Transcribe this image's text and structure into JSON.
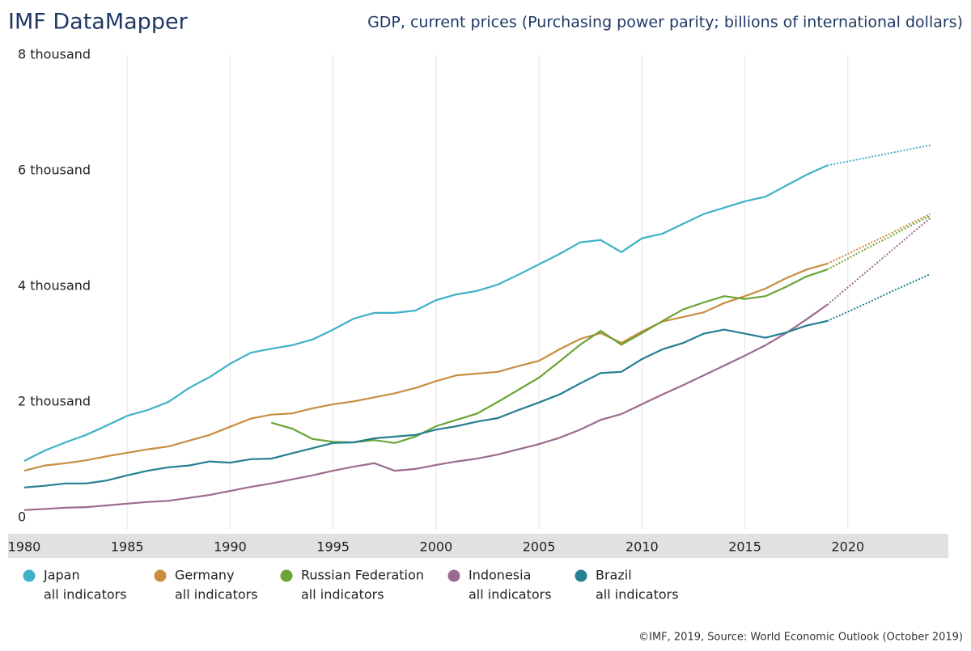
{
  "brand": "IMF DataMapper",
  "footer": "©IMF, 2019, Source: World Economic Outlook (October 2019)",
  "chart_data": {
    "type": "line",
    "title": "GDP, current prices (Purchasing power parity; billions of international dollars)",
    "x": [
      1980,
      1981,
      1982,
      1983,
      1984,
      1985,
      1986,
      1987,
      1988,
      1989,
      1990,
      1991,
      1992,
      1993,
      1994,
      1995,
      1996,
      1997,
      1998,
      1999,
      2000,
      2001,
      2002,
      2003,
      2004,
      2005,
      2006,
      2007,
      2008,
      2009,
      2010,
      2011,
      2012,
      2013,
      2014,
      2015,
      2016,
      2017,
      2018,
      2019,
      2020,
      2021,
      2022,
      2023,
      2024
    ],
    "forecast_from": 2019,
    "xlim": [
      1980,
      2025
    ],
    "xticks": [
      1980,
      1985,
      1990,
      1995,
      2000,
      2005,
      2010,
      2015,
      2020
    ],
    "ylim": [
      0,
      8000
    ],
    "yticks": [
      0,
      {
        "value": 2000,
        "label": "2 thousand"
      },
      {
        "value": 4000,
        "label": "4 thousand"
      },
      {
        "value": 6000,
        "label": "6 thousand"
      },
      {
        "value": 8000,
        "label": "8 thousand"
      }
    ],
    "grid": "x",
    "series": [
      {
        "name": "Japan",
        "subtitle": "all indicators",
        "color": "#3eb1c8",
        "values": [
          980,
          1160,
          1300,
          1430,
          1590,
          1760,
          1860,
          2000,
          2240,
          2430,
          2660,
          2850,
          2920,
          2980,
          3080,
          3250,
          3440,
          3540,
          3540,
          3580,
          3760,
          3860,
          3920,
          4030,
          4200,
          4380,
          4560,
          4760,
          4800,
          4590,
          4830,
          4910,
          5080,
          5250,
          5360,
          5470,
          5550,
          5740,
          5930,
          6090,
          6160,
          6230,
          6300,
          6370,
          6440
        ]
      },
      {
        "name": "Germany",
        "subtitle": "all indicators",
        "color": "#c98d3f",
        "values": [
          810,
          900,
          940,
          990,
          1060,
          1120,
          1180,
          1230,
          1330,
          1430,
          1570,
          1710,
          1780,
          1800,
          1890,
          1960,
          2010,
          2080,
          2150,
          2240,
          2360,
          2460,
          2490,
          2520,
          2620,
          2710,
          2910,
          3090,
          3190,
          3020,
          3220,
          3390,
          3470,
          3550,
          3710,
          3830,
          3960,
          4140,
          4290,
          4390,
          4560,
          4730,
          4900,
          5080,
          5250
        ]
      },
      {
        "name": "Russian Federation",
        "subtitle": "all indicators",
        "color": "#6aa434",
        "values": [
          null,
          null,
          null,
          null,
          null,
          null,
          null,
          null,
          null,
          null,
          null,
          null,
          1640,
          1540,
          1360,
          1310,
          1300,
          1340,
          1290,
          1400,
          1580,
          1690,
          1800,
          2000,
          2210,
          2420,
          2700,
          2990,
          3230,
          2990,
          3190,
          3400,
          3600,
          3720,
          3830,
          3780,
          3830,
          3990,
          4170,
          4290,
          4480,
          4670,
          4850,
          5040,
          5220
        ]
      },
      {
        "name": "Indonesia",
        "subtitle": "all indicators",
        "color": "#9b6b8e",
        "values": [
          130,
          150,
          170,
          180,
          210,
          240,
          270,
          290,
          340,
          390,
          460,
          530,
          590,
          660,
          730,
          810,
          880,
          940,
          810,
          840,
          910,
          970,
          1020,
          1090,
          1180,
          1270,
          1380,
          1520,
          1690,
          1790,
          1960,
          2130,
          2290,
          2460,
          2630,
          2800,
          2980,
          3190,
          3430,
          3680,
          3980,
          4280,
          4580,
          4880,
          5180
        ]
      },
      {
        "name": "Brazil",
        "subtitle": "all indicators",
        "color": "#267f92",
        "values": [
          520,
          550,
          590,
          590,
          640,
          730,
          810,
          870,
          900,
          970,
          950,
          1010,
          1020,
          1110,
          1200,
          1290,
          1300,
          1370,
          1400,
          1430,
          1520,
          1580,
          1660,
          1720,
          1860,
          1990,
          2130,
          2320,
          2500,
          2520,
          2740,
          2910,
          3020,
          3180,
          3250,
          3180,
          3110,
          3200,
          3320,
          3400,
          3560,
          3720,
          3890,
          4050,
          4210
        ]
      }
    ]
  }
}
